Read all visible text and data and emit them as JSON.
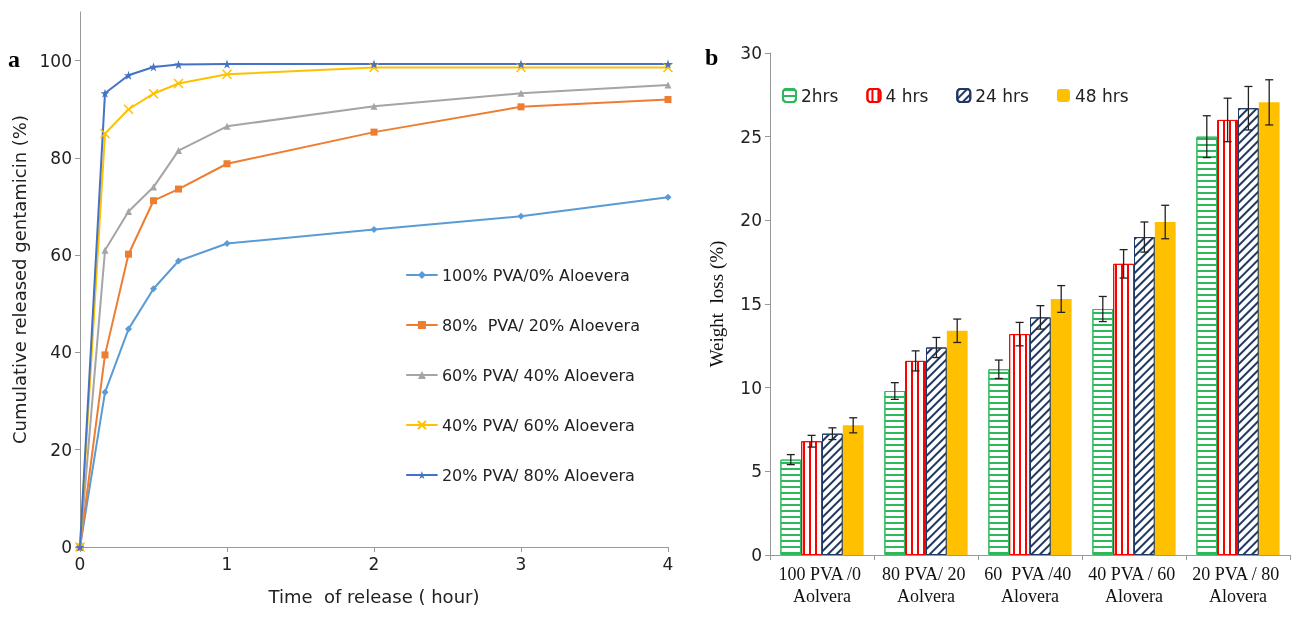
{
  "chart_data": [
    {
      "type": "line",
      "annotations": [
        "a"
      ],
      "xlabel": "Time  of release ( hour)",
      "ylabel": "Cumulative released gentamicin (%)",
      "x": [
        0,
        0.17,
        0.33,
        0.5,
        0.67,
        1,
        2,
        3,
        4
      ],
      "series": [
        {
          "name": "100% PVA/0% Aloevera",
          "color": "#5b9bd5",
          "marker": "diamond",
          "values": [
            0,
            31.8,
            44.8,
            53.1,
            58.8,
            62.4,
            65.3,
            68,
            71.9
          ]
        },
        {
          "name": "80%  PVA/ 20% Aloevera",
          "color": "#ed7d31",
          "marker": "square",
          "values": [
            0,
            39.5,
            60.2,
            71.2,
            73.6,
            78.8,
            85.3,
            90.5,
            92
          ]
        },
        {
          "name": "60% PVA/ 40% Aloevera",
          "color": "#a5a5a5",
          "marker": "triangle",
          "values": [
            0,
            61,
            69,
            74,
            81.5,
            86.5,
            90.6,
            93.3,
            95
          ]
        },
        {
          "name": "40% PVA/ 60% Aloevera",
          "color": "#ffc000",
          "marker": "cross",
          "values": [
            0,
            85,
            90,
            93.2,
            95.3,
            97.2,
            98.6,
            98.6,
            98.6
          ]
        },
        {
          "name": "20% PVA/ 80% Aloevera",
          "color": "#4472c4",
          "marker": "star",
          "values": [
            0,
            93.3,
            97,
            98.7,
            99.2,
            99.3,
            99.3,
            99.3,
            99.3
          ]
        }
      ],
      "xlim": [
        0,
        4
      ],
      "xticks": [
        0,
        1,
        2,
        3,
        4
      ],
      "ylim": [
        0,
        110
      ],
      "yticks": [
        0,
        20,
        40,
        60,
        80,
        100
      ],
      "grid": false,
      "legend": "right"
    },
    {
      "type": "bar",
      "annotations": [
        "b"
      ],
      "ylabel": "Weight  loss (%)",
      "categories": [
        "100 PVA /0 Aolvera",
        "80 PVA/ 20 Aolvera",
        "60  PVA /40 Alovera",
        "40 PVA / 60 Alovera",
        "20 PVA / 80 Alovera"
      ],
      "series": [
        {
          "name": "2hrs",
          "color": "#2eb85c",
          "values": [
            5.7,
            9.8,
            11.1,
            14.7,
            25
          ],
          "errors": [
            0.3,
            0.5,
            0.55,
            0.75,
            1.25
          ]
        },
        {
          "name": "4 hrs",
          "color": "#ff0000",
          "values": [
            6.8,
            11.6,
            13.2,
            17.4,
            26
          ],
          "errors": [
            0.35,
            0.6,
            0.7,
            0.85,
            1.3
          ]
        },
        {
          "name": "24 hrs",
          "color": "#1f3864",
          "values": [
            7.25,
            12.4,
            14.2,
            19,
            26.7
          ],
          "errors": [
            0.35,
            0.6,
            0.7,
            0.9,
            1.3
          ]
        },
        {
          "name": "48 hrs",
          "color": "#ffc000",
          "values": [
            7.75,
            13.4,
            15.3,
            19.9,
            27.05
          ],
          "errors": [
            0.45,
            0.7,
            0.8,
            1,
            1.35
          ]
        }
      ],
      "ylim": [
        0,
        30
      ],
      "yticks": [
        0,
        5,
        10,
        15,
        20,
        25,
        30
      ],
      "grid": false,
      "legend": "top left"
    }
  ]
}
